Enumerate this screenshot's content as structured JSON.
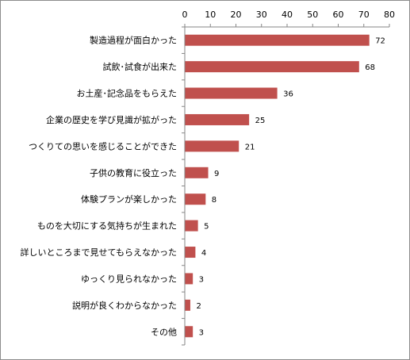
{
  "chart_data": {
    "type": "bar",
    "orientation": "horizontal",
    "title": "",
    "xlabel": "",
    "ylabel": "",
    "xlim": [
      0,
      80
    ],
    "ticks": [
      0,
      10,
      20,
      30,
      40,
      50,
      60,
      70,
      80
    ],
    "axis_position": "top",
    "grid": false,
    "bar_color": "#C0504D",
    "categories": [
      "製造過程が面白かった",
      "試飲･試食が出来た",
      "お土産･記念品をもらえた",
      "企業の歴史を学び見識が拡がった",
      "つくりての思いを感じることができた",
      "子供の教育に役立った",
      "体験プランが楽しかった",
      "ものを大切にする気持ちが生まれた",
      "詳しいところまで見せてもらえなかった",
      "ゆっくり見られなかった",
      "説明が良くわからなかった",
      "その他"
    ],
    "values": [
      72,
      68,
      36,
      25,
      21,
      9,
      8,
      5,
      4,
      3,
      2,
      3
    ]
  }
}
